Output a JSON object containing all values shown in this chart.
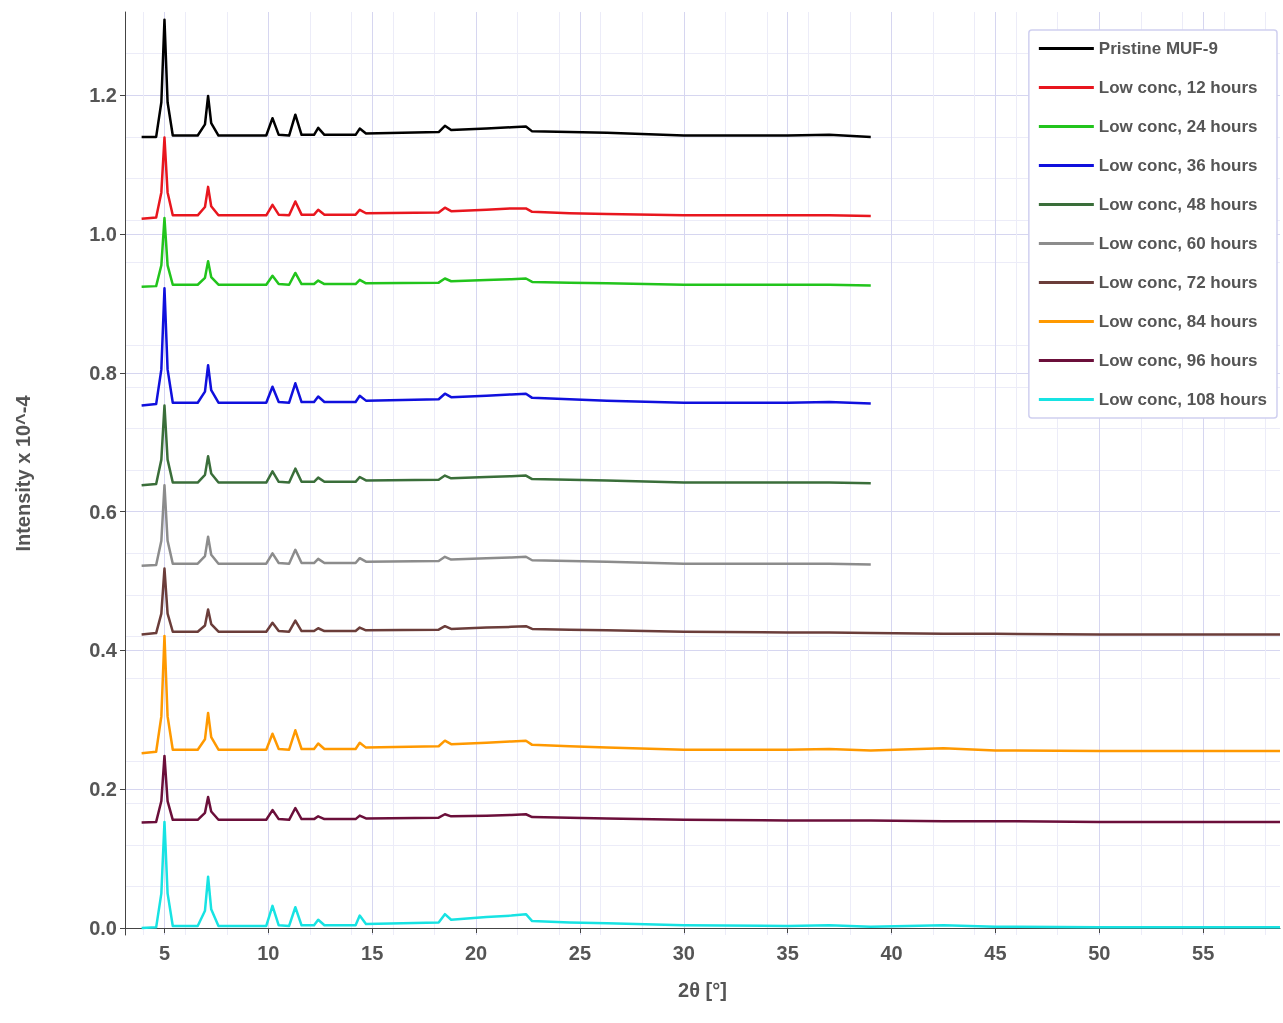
{
  "chart_data": {
    "type": "line",
    "xlabel": "2θ [°]",
    "ylabel": "Intensity x 10^-4",
    "x": [
      3.9,
      4.6,
      4.85,
      5.0,
      5.15,
      5.4,
      6.6,
      6.95,
      7.1,
      7.25,
      7.6,
      9.9,
      10.2,
      10.5,
      11.0,
      11.3,
      11.6,
      12.2,
      12.4,
      12.7,
      14.2,
      14.4,
      14.7,
      18.2,
      18.5,
      18.8,
      20.5,
      21.7,
      22.4,
      22.7,
      24.5,
      26.3,
      30,
      35,
      37,
      39,
      42.5,
      45,
      50,
      55,
      58.7
    ],
    "xlim": [
      3.1,
      58.7
    ],
    "xticks": [
      5,
      10,
      15,
      20,
      25,
      30,
      35,
      40,
      45,
      50,
      55
    ],
    "ylim": [
      -0.01,
      1.32
    ],
    "yticks": [
      {
        "value": 0,
        "label": "0.0"
      },
      0.2,
      0.4,
      0.6,
      0.8,
      {
        "value": 1,
        "label": "1.0"
      },
      1.2
    ],
    "grid": true,
    "legend": "top right",
    "marker": "none",
    "line_style": "solid",
    "series": [
      {
        "name": "Pristine MUF-9",
        "color": "#000000",
        "values": [
          1.14,
          1.14,
          1.19,
          1.309,
          1.19,
          1.142,
          1.142,
          1.158,
          1.199,
          1.16,
          1.142,
          1.142,
          1.167,
          1.143,
          1.142,
          1.172,
          1.143,
          1.143,
          1.153,
          1.143,
          1.143,
          1.152,
          1.145,
          1.147,
          1.156,
          1.15,
          1.152,
          1.154,
          1.155,
          1.148,
          1.147,
          1.146,
          1.142,
          1.142,
          1.143,
          1.14,
          null,
          null,
          null,
          null,
          null
        ]
      },
      {
        "name": "Low conc, 12 hours",
        "color": "#e8161e",
        "values": [
          1.022,
          1.024,
          1.06,
          1.139,
          1.06,
          1.027,
          1.027,
          1.039,
          1.068,
          1.04,
          1.027,
          1.027,
          1.042,
          1.028,
          1.027,
          1.047,
          1.028,
          1.028,
          1.035,
          1.028,
          1.028,
          1.035,
          1.03,
          1.031,
          1.038,
          1.033,
          1.035,
          1.037,
          1.037,
          1.032,
          1.03,
          1.029,
          1.027,
          1.027,
          1.027,
          1.026,
          null,
          null,
          null,
          null,
          null
        ]
      },
      {
        "name": "Low conc, 24 hours",
        "color": "#22c41c",
        "values": [
          0.924,
          0.925,
          0.955,
          1.023,
          0.955,
          0.927,
          0.927,
          0.937,
          0.961,
          0.938,
          0.927,
          0.927,
          0.94,
          0.928,
          0.927,
          0.944,
          0.928,
          0.928,
          0.933,
          0.928,
          0.928,
          0.934,
          0.929,
          0.93,
          0.936,
          0.932,
          0.934,
          0.935,
          0.936,
          0.931,
          0.93,
          0.929,
          0.927,
          0.927,
          0.927,
          0.926,
          null,
          null,
          null,
          null,
          null
        ]
      },
      {
        "name": "Low conc, 36 hours",
        "color": "#1010dd",
        "values": [
          0.753,
          0.755,
          0.805,
          0.922,
          0.805,
          0.757,
          0.757,
          0.773,
          0.811,
          0.775,
          0.757,
          0.757,
          0.78,
          0.758,
          0.757,
          0.785,
          0.758,
          0.758,
          0.766,
          0.758,
          0.758,
          0.767,
          0.76,
          0.762,
          0.77,
          0.765,
          0.767,
          0.769,
          0.77,
          0.764,
          0.762,
          0.76,
          0.757,
          0.757,
          0.758,
          0.756,
          null,
          null,
          null,
          null,
          null
        ]
      },
      {
        "name": "Low conc, 48 hours",
        "color": "#3a6e3a",
        "values": [
          0.638,
          0.64,
          0.675,
          0.753,
          0.675,
          0.642,
          0.642,
          0.653,
          0.68,
          0.655,
          0.642,
          0.642,
          0.658,
          0.643,
          0.642,
          0.662,
          0.643,
          0.643,
          0.649,
          0.643,
          0.643,
          0.65,
          0.645,
          0.646,
          0.652,
          0.648,
          0.65,
          0.651,
          0.652,
          0.647,
          0.646,
          0.645,
          0.642,
          0.642,
          0.642,
          0.641,
          null,
          null,
          null,
          null,
          null
        ]
      },
      {
        "name": "Low conc, 60 hours",
        "color": "#8c8c8c",
        "values": [
          0.522,
          0.523,
          0.558,
          0.638,
          0.558,
          0.525,
          0.525,
          0.536,
          0.564,
          0.538,
          0.525,
          0.525,
          0.54,
          0.526,
          0.525,
          0.545,
          0.526,
          0.526,
          0.532,
          0.526,
          0.526,
          0.533,
          0.528,
          0.529,
          0.535,
          0.531,
          0.533,
          0.534,
          0.535,
          0.53,
          0.529,
          0.528,
          0.525,
          0.525,
          0.525,
          0.524,
          null,
          null,
          null,
          null,
          null
        ]
      },
      {
        "name": "Low conc, 72 hours",
        "color": "#6b3d3a",
        "values": [
          0.423,
          0.425,
          0.453,
          0.518,
          0.453,
          0.427,
          0.427,
          0.436,
          0.459,
          0.438,
          0.427,
          0.427,
          0.44,
          0.428,
          0.427,
          0.443,
          0.428,
          0.428,
          0.432,
          0.428,
          0.428,
          0.433,
          0.429,
          0.43,
          0.435,
          0.431,
          0.433,
          0.434,
          0.435,
          0.431,
          0.43,
          0.429,
          0.427,
          0.426,
          0.426,
          0.425,
          0.424,
          0.424,
          0.423,
          0.423,
          0.423
        ]
      },
      {
        "name": "Low conc, 84 hours",
        "color": "#ff9900",
        "values": [
          0.252,
          0.254,
          0.305,
          0.421,
          0.305,
          0.257,
          0.257,
          0.272,
          0.31,
          0.275,
          0.257,
          0.257,
          0.28,
          0.258,
          0.257,
          0.285,
          0.258,
          0.258,
          0.266,
          0.258,
          0.258,
          0.267,
          0.26,
          0.262,
          0.27,
          0.265,
          0.267,
          0.269,
          0.27,
          0.264,
          0.262,
          0.26,
          0.257,
          0.257,
          0.258,
          0.256,
          0.259,
          0.256,
          0.255,
          0.255,
          0.255
        ]
      },
      {
        "name": "Low conc, 96 hours",
        "color": "#6b0f3a",
        "values": [
          0.152,
          0.153,
          0.183,
          0.248,
          0.183,
          0.156,
          0.156,
          0.166,
          0.189,
          0.168,
          0.156,
          0.156,
          0.17,
          0.157,
          0.156,
          0.173,
          0.157,
          0.157,
          0.161,
          0.157,
          0.157,
          0.162,
          0.158,
          0.159,
          0.164,
          0.161,
          0.162,
          0.163,
          0.164,
          0.16,
          0.159,
          0.158,
          0.156,
          0.155,
          0.155,
          0.155,
          0.154,
          0.154,
          0.153,
          0.153,
          0.153
        ]
      },
      {
        "name": "Low conc, 108 hours",
        "color": "#17e3e3",
        "values": [
          0.0,
          0.001,
          0.05,
          0.153,
          0.05,
          0.003,
          0.003,
          0.025,
          0.074,
          0.027,
          0.003,
          0.003,
          0.032,
          0.004,
          0.003,
          0.03,
          0.004,
          0.004,
          0.012,
          0.004,
          0.004,
          0.018,
          0.006,
          0.008,
          0.02,
          0.012,
          0.016,
          0.018,
          0.02,
          0.01,
          0.008,
          0.007,
          0.004,
          0.003,
          0.004,
          0.002,
          0.004,
          0.002,
          0.001,
          0.001,
          0.001
        ]
      }
    ]
  }
}
